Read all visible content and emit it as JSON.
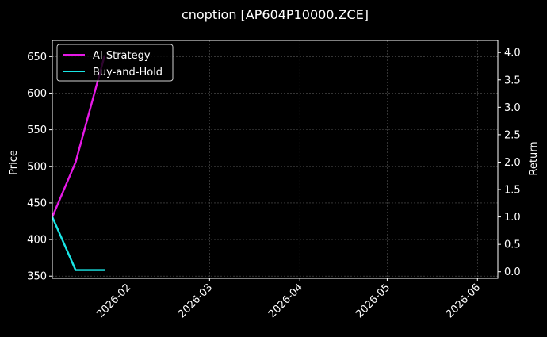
{
  "chart_data": {
    "type": "line",
    "title": "cnoption [AP604P10000.ZCE]",
    "xlabel": "",
    "ylabel_left": "Price",
    "ylabel_right": "Return",
    "x_ticks": [
      "2026-02",
      "2026-03",
      "2026-04",
      "2026-05",
      "2026-06"
    ],
    "y_left_ticks": [
      350,
      400,
      450,
      500,
      550,
      600,
      650
    ],
    "y_right_ticks": [
      "0.0",
      "0.5",
      "1.0",
      "1.5",
      "2.0",
      "2.5",
      "3.0",
      "3.5",
      "4.0"
    ],
    "y_left_lim": [
      347,
      672
    ],
    "y_right_lim": [
      -0.12,
      4.22
    ],
    "x_lim": [
      "2026-01-06",
      "2026-06-08"
    ],
    "grid": true,
    "legend_position": "top-left",
    "series": [
      {
        "name": "AI Strategy",
        "axis": "right",
        "color": "#e619e6",
        "points": [
          [
            "2026-01-06",
            1.0
          ],
          [
            "2026-01-14",
            2.0
          ],
          [
            "2026-01-24",
            3.95
          ]
        ]
      },
      {
        "name": "Buy-and-Hold",
        "axis": "right",
        "color": "#19e6e6",
        "points": [
          [
            "2026-01-06",
            1.0
          ],
          [
            "2026-01-14",
            0.03
          ],
          [
            "2026-01-24",
            0.03
          ]
        ]
      }
    ]
  }
}
